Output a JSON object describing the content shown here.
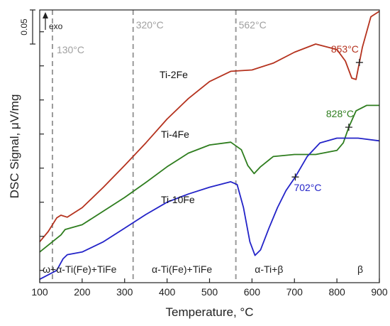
{
  "chart_data": {
    "type": "line",
    "xlabel": "Temperature, °C",
    "ylabel": "DSC Signal, μV/mg",
    "xlim": [
      100,
      900
    ],
    "xticks": [
      100,
      200,
      300,
      400,
      500,
      600,
      700,
      800,
      900
    ],
    "ylim": [
      0,
      0.4
    ],
    "y_tick_values": [
      0.018,
      0.068,
      0.118,
      0.168,
      0.218,
      0.268,
      0.318,
      0.368
    ],
    "scale_bar": {
      "label": "0.05",
      "from": 0.35,
      "to": 0.4
    },
    "exo_label": "exo",
    "reference_lines": [
      {
        "x": 130,
        "label": "130°C"
      },
      {
        "x": 320,
        "label": "320°C"
      },
      {
        "x": 562,
        "label": "562°C"
      }
    ],
    "series": [
      {
        "name": "Ti-2Fe",
        "color": "#b5321e",
        "x": [
          100,
          120,
          140,
          150,
          165,
          200,
          250,
          300,
          350,
          400,
          450,
          500,
          550,
          600,
          650,
          700,
          750,
          800,
          820,
          835,
          845,
          860,
          880,
          900
        ],
        "y": [
          0.06,
          0.075,
          0.095,
          0.099,
          0.096,
          0.11,
          0.14,
          0.172,
          0.205,
          0.24,
          0.27,
          0.295,
          0.31,
          0.312,
          0.322,
          0.338,
          0.35,
          0.342,
          0.325,
          0.3,
          0.298,
          0.345,
          0.39,
          0.398
        ]
      },
      {
        "name": "Ti-4Fe",
        "color": "#2e7d1e",
        "x": [
          100,
          120,
          150,
          160,
          200,
          250,
          300,
          350,
          400,
          450,
          500,
          550,
          575,
          590,
          605,
          620,
          650,
          700,
          750,
          800,
          815,
          828,
          845,
          870,
          900
        ],
        "y": [
          0.045,
          0.055,
          0.07,
          0.078,
          0.085,
          0.105,
          0.125,
          0.147,
          0.17,
          0.19,
          0.202,
          0.206,
          0.195,
          0.172,
          0.16,
          0.17,
          0.185,
          0.188,
          0.188,
          0.194,
          0.205,
          0.228,
          0.252,
          0.26,
          0.26
        ]
      },
      {
        "name": "Ti-10Fe",
        "color": "#2323c8",
        "x": [
          100,
          140,
          155,
          165,
          200,
          250,
          300,
          350,
          400,
          450,
          500,
          550,
          565,
          580,
          595,
          607,
          620,
          640,
          660,
          680,
          702,
          730,
          760,
          800,
          850,
          900
        ],
        "y": [
          0.005,
          0.018,
          0.035,
          0.041,
          0.045,
          0.06,
          0.08,
          0.1,
          0.118,
          0.13,
          0.14,
          0.148,
          0.144,
          0.11,
          0.06,
          0.04,
          0.048,
          0.08,
          0.11,
          0.135,
          0.155,
          0.185,
          0.205,
          0.212,
          0.212,
          0.208
        ]
      }
    ],
    "annotations": [
      {
        "text": "853°C",
        "x": 853,
        "y": 0.323,
        "color": "#b5321e"
      },
      {
        "text": "828°C",
        "x": 828,
        "y": 0.228,
        "color": "#2e7d1e"
      },
      {
        "text": "702°C",
        "x": 702,
        "y": 0.155,
        "color": "#2323c8"
      }
    ],
    "phase_regions": [
      {
        "label": "ω+α-Ti(Fe)+TiFe",
        "x": 194
      },
      {
        "label": "α-Ti(Fe)+TiFe",
        "x": 435
      },
      {
        "label": "α-Ti+β",
        "x": 640
      },
      {
        "label": "β",
        "x": 855
      }
    ]
  }
}
